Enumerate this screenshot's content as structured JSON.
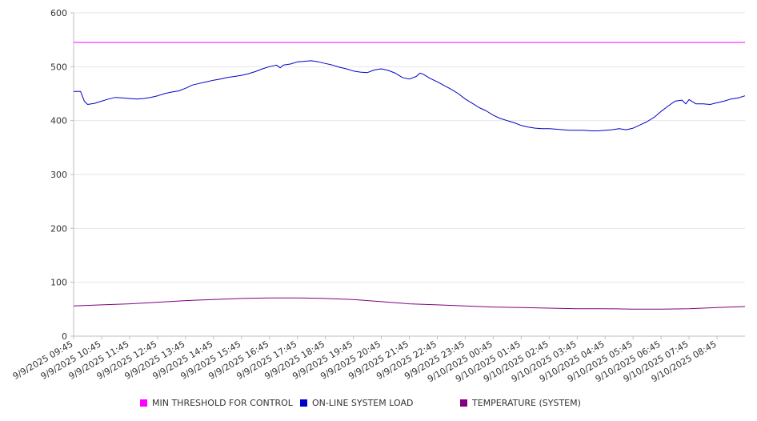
{
  "chart_data": {
    "type": "line",
    "title": "",
    "xlabel": "",
    "ylabel": "",
    "ylim": [
      0,
      600
    ],
    "yticks": [
      0,
      100,
      200,
      300,
      400,
      500,
      600
    ],
    "grid": "horizontal",
    "legend_position": "bottom",
    "x_tick_labels": [
      "9/9/2025 09:45",
      "9/9/2025 10:45",
      "9/9/2025 11:45",
      "9/9/2025 12:45",
      "9/9/2025 13:45",
      "9/9/2025 14:45",
      "9/9/2025 15:45",
      "9/9/2025 16:45",
      "9/9/2025 17:45",
      "9/9/2025 18:45",
      "9/9/2025 19:45",
      "9/9/2025 20:45",
      "9/9/2025 21:45",
      "9/9/2025 22:45",
      "9/9/2025 23:45",
      "9/10/2025 00:45",
      "9/10/2025 01:45",
      "9/10/2025 02:45",
      "9/10/2025 03:45",
      "9/10/2025 04:45",
      "9/10/2025 05:45",
      "9/10/2025 06:45",
      "9/10/2025 07:45",
      "9/10/2025 08:45"
    ],
    "x_range": [
      "9/9/2025 09:45",
      "9/10/2025 09:45"
    ],
    "series": [
      {
        "name": "MIN THRESHOLD FOR CONTROL",
        "color": "#ff00ff",
        "points": [
          [
            "9/9/2025 09:45",
            545
          ],
          [
            "9/10/2025 09:45",
            545
          ]
        ]
      },
      {
        "name": "ON-LINE SYSTEM LOAD",
        "color": "#0000cc",
        "points": [
          [
            "9/9/2025 09:45",
            454
          ],
          [
            "9/9/2025 10:00",
            454
          ],
          [
            "9/9/2025 10:08",
            436
          ],
          [
            "9/9/2025 10:15",
            430
          ],
          [
            "9/9/2025 10:30",
            432
          ],
          [
            "9/9/2025 10:45",
            436
          ],
          [
            "9/9/2025 11:00",
            440
          ],
          [
            "9/9/2025 11:15",
            443
          ],
          [
            "9/9/2025 11:30",
            442
          ],
          [
            "9/9/2025 11:45",
            441
          ],
          [
            "9/9/2025 12:00",
            440
          ],
          [
            "9/9/2025 12:15",
            441
          ],
          [
            "9/9/2025 12:30",
            443
          ],
          [
            "9/9/2025 12:45",
            446
          ],
          [
            "9/9/2025 13:00",
            450
          ],
          [
            "9/9/2025 13:15",
            453
          ],
          [
            "9/9/2025 13:30",
            455
          ],
          [
            "9/9/2025 13:45",
            460
          ],
          [
            "9/9/2025 14:00",
            466
          ],
          [
            "9/9/2025 14:15",
            469
          ],
          [
            "9/9/2025 14:30",
            472
          ],
          [
            "9/9/2025 14:45",
            475
          ],
          [
            "9/9/2025 15:00",
            477
          ],
          [
            "9/9/2025 15:15",
            480
          ],
          [
            "9/9/2025 15:30",
            482
          ],
          [
            "9/9/2025 15:45",
            484
          ],
          [
            "9/9/2025 16:00",
            487
          ],
          [
            "9/9/2025 16:15",
            491
          ],
          [
            "9/9/2025 16:30",
            496
          ],
          [
            "9/9/2025 16:45",
            500
          ],
          [
            "9/9/2025 17:00",
            503
          ],
          [
            "9/9/2025 17:08",
            498
          ],
          [
            "9/9/2025 17:15",
            503
          ],
          [
            "9/9/2025 17:30",
            505
          ],
          [
            "9/9/2025 17:45",
            509
          ],
          [
            "9/9/2025 18:00",
            510
          ],
          [
            "9/9/2025 18:15",
            511
          ],
          [
            "9/9/2025 18:30",
            509
          ],
          [
            "9/9/2025 18:45",
            506
          ],
          [
            "9/9/2025 19:00",
            503
          ],
          [
            "9/9/2025 19:15",
            499
          ],
          [
            "9/9/2025 19:30",
            496
          ],
          [
            "9/9/2025 19:45",
            492
          ],
          [
            "9/9/2025 20:00",
            490
          ],
          [
            "9/9/2025 20:15",
            489
          ],
          [
            "9/9/2025 20:30",
            494
          ],
          [
            "9/9/2025 20:45",
            496
          ],
          [
            "9/9/2025 21:00",
            493
          ],
          [
            "9/9/2025 21:15",
            488
          ],
          [
            "9/9/2025 21:30",
            480
          ],
          [
            "9/9/2025 21:45",
            477
          ],
          [
            "9/9/2025 22:00",
            482
          ],
          [
            "9/9/2025 22:08",
            488
          ],
          [
            "9/9/2025 22:15",
            486
          ],
          [
            "9/9/2025 22:30",
            478
          ],
          [
            "9/9/2025 22:45",
            472
          ],
          [
            "9/9/2025 23:00",
            465
          ],
          [
            "9/9/2025 23:15",
            458
          ],
          [
            "9/9/2025 23:30",
            450
          ],
          [
            "9/9/2025 23:45",
            440
          ],
          [
            "9/10/2025 00:00",
            432
          ],
          [
            "9/10/2025 00:15",
            424
          ],
          [
            "9/10/2025 00:30",
            418
          ],
          [
            "9/10/2025 00:45",
            410
          ],
          [
            "9/10/2025 01:00",
            404
          ],
          [
            "9/10/2025 01:15",
            400
          ],
          [
            "9/10/2025 01:30",
            396
          ],
          [
            "9/10/2025 01:45",
            391
          ],
          [
            "9/10/2025 02:00",
            388
          ],
          [
            "9/10/2025 02:15",
            386
          ],
          [
            "9/10/2025 02:30",
            385
          ],
          [
            "9/10/2025 02:45",
            385
          ],
          [
            "9/10/2025 03:00",
            384
          ],
          [
            "9/10/2025 03:15",
            383
          ],
          [
            "9/10/2025 03:30",
            382
          ],
          [
            "9/10/2025 03:45",
            382
          ],
          [
            "9/10/2025 04:00",
            382
          ],
          [
            "9/10/2025 04:15",
            381
          ],
          [
            "9/10/2025 04:30",
            381
          ],
          [
            "9/10/2025 04:45",
            382
          ],
          [
            "9/10/2025 05:00",
            383
          ],
          [
            "9/10/2025 05:15",
            385
          ],
          [
            "9/10/2025 05:30",
            383
          ],
          [
            "9/10/2025 05:45",
            386
          ],
          [
            "9/10/2025 06:00",
            392
          ],
          [
            "9/10/2025 06:15",
            398
          ],
          [
            "9/10/2025 06:30",
            406
          ],
          [
            "9/10/2025 06:45",
            417
          ],
          [
            "9/10/2025 07:00",
            427
          ],
          [
            "9/10/2025 07:15",
            436
          ],
          [
            "9/10/2025 07:30",
            438
          ],
          [
            "9/10/2025 07:38",
            431
          ],
          [
            "9/10/2025 07:45",
            439
          ],
          [
            "9/10/2025 08:00",
            431
          ],
          [
            "9/10/2025 08:15",
            431
          ],
          [
            "9/10/2025 08:30",
            430
          ],
          [
            "9/10/2025 08:45",
            433
          ],
          [
            "9/10/2025 09:00",
            436
          ],
          [
            "9/10/2025 09:15",
            440
          ],
          [
            "9/10/2025 09:30",
            442
          ],
          [
            "9/10/2025 09:45",
            446
          ]
        ]
      },
      {
        "name": "TEMPERATURE (SYSTEM)",
        "color": "#800080",
        "points": [
          [
            "9/9/2025 09:45",
            56
          ],
          [
            "9/9/2025 10:45",
            58
          ],
          [
            "9/9/2025 11:45",
            60
          ],
          [
            "9/9/2025 12:45",
            63
          ],
          [
            "9/9/2025 13:45",
            66
          ],
          [
            "9/9/2025 14:45",
            68
          ],
          [
            "9/9/2025 15:45",
            70
          ],
          [
            "9/9/2025 16:45",
            71
          ],
          [
            "9/9/2025 17:45",
            71
          ],
          [
            "9/9/2025 18:45",
            70
          ],
          [
            "9/9/2025 19:45",
            68
          ],
          [
            "9/9/2025 20:45",
            64
          ],
          [
            "9/9/2025 21:45",
            60
          ],
          [
            "9/9/2025 22:45",
            58
          ],
          [
            "9/9/2025 23:45",
            56
          ],
          [
            "9/10/2025 00:45",
            54
          ],
          [
            "9/10/2025 01:45",
            53
          ],
          [
            "9/10/2025 02:45",
            52
          ],
          [
            "9/10/2025 03:45",
            51
          ],
          [
            "9/10/2025 04:45",
            51
          ],
          [
            "9/10/2025 05:45",
            50
          ],
          [
            "9/10/2025 06:45",
            50
          ],
          [
            "9/10/2025 07:45",
            51
          ],
          [
            "9/10/2025 08:45",
            53
          ],
          [
            "9/10/2025 09:45",
            55
          ]
        ]
      }
    ]
  }
}
